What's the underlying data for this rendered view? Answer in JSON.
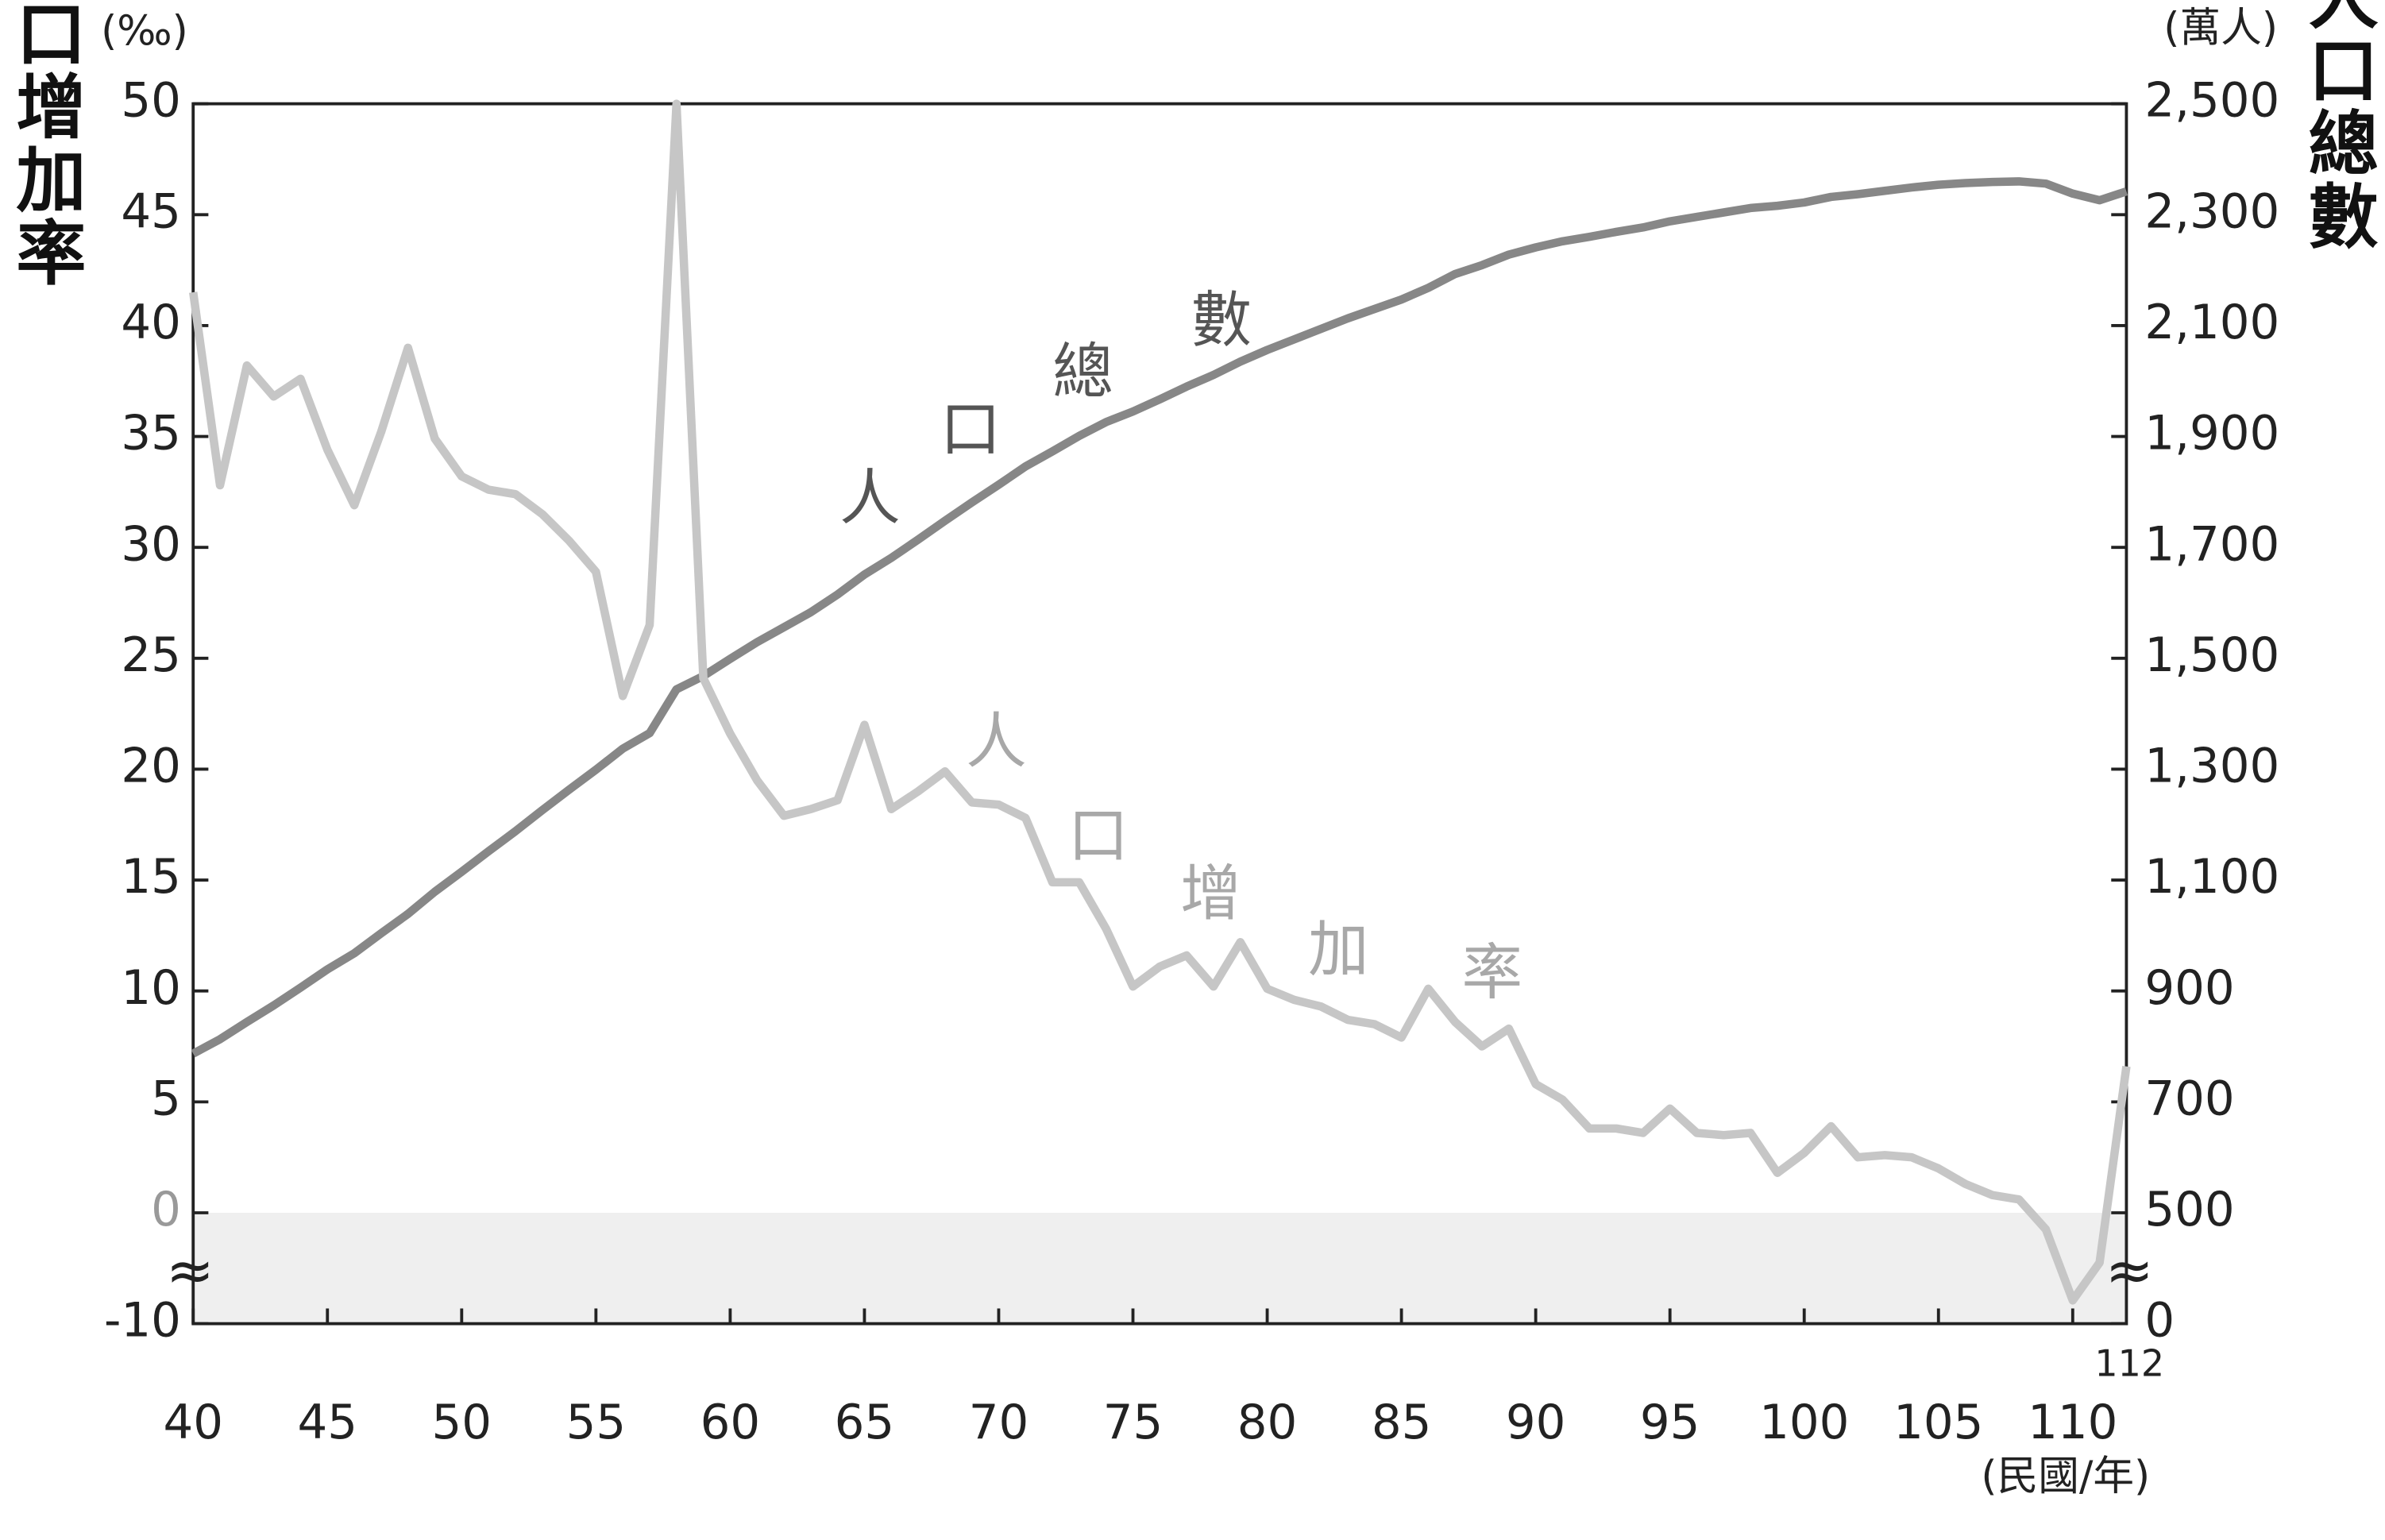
{
  "chart_data": {
    "type": "line",
    "y_unit": "(‰)",
    "y2_unit": "(萬人)",
    "x_unit": "(民國/年)",
    "ylabel": "人口增加率",
    "y2label": "人口總數",
    "axis_break_symbol": "≈",
    "annotations": [
      {
        "text": "人口總數",
        "series": 0
      },
      {
        "text": "人口增加率",
        "series": 1
      }
    ],
    "x": [
      40,
      41,
      42,
      43,
      44,
      45,
      46,
      47,
      48,
      49,
      50,
      51,
      52,
      53,
      54,
      55,
      56,
      57,
      58,
      59,
      60,
      61,
      62,
      63,
      64,
      65,
      66,
      67,
      68,
      69,
      70,
      71,
      72,
      73,
      74,
      75,
      76,
      77,
      78,
      79,
      80,
      81,
      82,
      83,
      84,
      85,
      86,
      87,
      88,
      89,
      90,
      91,
      92,
      93,
      94,
      95,
      96,
      97,
      98,
      99,
      100,
      101,
      102,
      103,
      104,
      105,
      106,
      107,
      108,
      109,
      110,
      111,
      112
    ],
    "xlim": [
      40,
      112
    ],
    "xticks": [
      40,
      45,
      50,
      55,
      60,
      65,
      70,
      75,
      80,
      85,
      90,
      95,
      100,
      105,
      110,
      112
    ],
    "ylim": [
      -10,
      50
    ],
    "yticks": [
      -10,
      0,
      5,
      10,
      15,
      20,
      25,
      30,
      35,
      40,
      45,
      50
    ],
    "y2lim": [
      0,
      2500
    ],
    "y2ticks": [
      0,
      500,
      700,
      900,
      {
        "value": 1100,
        "label": "1,100"
      },
      {
        "value": 1300,
        "label": "1,300"
      },
      {
        "value": 1500,
        "label": "1,500"
      },
      {
        "value": 1700,
        "label": "1,700"
      },
      {
        "value": 1900,
        "label": "1,900"
      },
      {
        "value": 2100,
        "label": "2,100"
      },
      {
        "value": 2300,
        "label": "2,300"
      },
      {
        "value": 2500,
        "label": "2,500"
      }
    ],
    "series": [
      {
        "name": "人口總數",
        "color": "#878787",
        "axis": "y2",
        "values": [
          787,
          813,
          844,
          874,
          906,
          939,
          968,
          1004,
          1039,
          1079,
          1115,
          1152,
          1188,
          1226,
          1263,
          1299,
          1337,
          1365,
          1444,
          1468,
          1499,
          1529,
          1556,
          1583,
          1615,
          1651,
          1681,
          1714,
          1748,
          1781,
          1813,
          1846,
          1873,
          1901,
          1926,
          1945,
          1967,
          1990,
          2011,
          2035,
          2056,
          2075,
          2094,
          2113,
          2130,
          2147,
          2168,
          2193,
          2209,
          2228,
          2241,
          2252,
          2260,
          2269,
          2277,
          2288,
          2296,
          2304,
          2312,
          2316,
          2322,
          2332,
          2337,
          2343,
          2349,
          2354,
          2357,
          2359,
          2360,
          2356,
          2338,
          2326,
          2342
        ]
      },
      {
        "name": "人口增加率",
        "color": "#c6c6c6",
        "values": [
          41.5,
          32.8,
          38.2,
          36.8,
          37.6,
          34.4,
          31.9,
          35.2,
          39,
          34.9,
          33.2,
          32.6,
          32.4,
          31.5,
          30.3,
          28.9,
          23.3,
          26.5,
          50,
          24.1,
          21.6,
          19.5,
          17.9,
          18.2,
          18.6,
          22,
          18.2,
          19,
          19.9,
          18.5,
          18.4,
          17.8,
          14.9,
          14.9,
          12.8,
          10.2,
          11.1,
          11.6,
          10.2,
          12.2,
          10.1,
          9.6,
          9.3,
          8.7,
          8.5,
          7.9,
          10.1,
          8.6,
          7.5,
          8.3,
          5.8,
          5.1,
          3.8,
          3.8,
          3.6,
          4.7,
          3.6,
          3.5,
          3.6,
          1.8,
          2.7,
          3.9,
          2.5,
          2.6,
          2.5,
          2,
          1.3,
          0.8,
          0.6,
          -1.5,
          -7.9,
          -4.5,
          6.6
        ]
      }
    ]
  }
}
